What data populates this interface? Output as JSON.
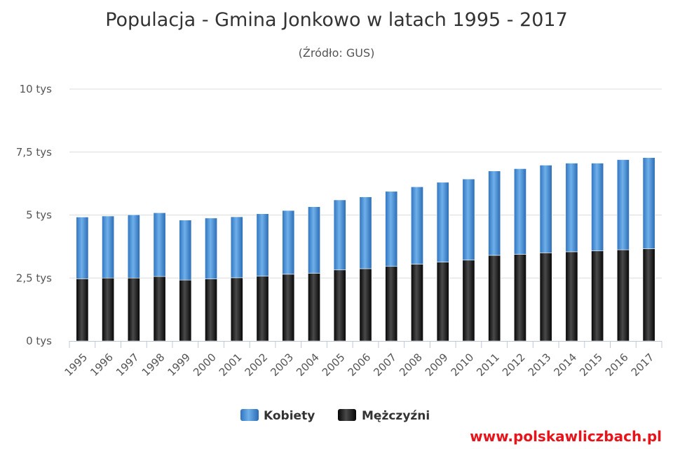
{
  "chart_data": {
    "type": "bar",
    "stacked": true,
    "title": "Populacja - Gmina Jonkowo w latach 1995 - 2017",
    "subtitle": "(Źródło: GUS)",
    "categories": [
      "1995",
      "1996",
      "1997",
      "1998",
      "1999",
      "2000",
      "2001",
      "2002",
      "2003",
      "2004",
      "2005",
      "2006",
      "2007",
      "2008",
      "2009",
      "2010",
      "2011",
      "2012",
      "2013",
      "2014",
      "2015",
      "2016",
      "2017"
    ],
    "series": [
      {
        "name": "Mężczyźni",
        "color": "#1a1a1a",
        "values": [
          2470,
          2500,
          2500,
          2560,
          2420,
          2460,
          2510,
          2570,
          2650,
          2690,
          2820,
          2870,
          2960,
          3050,
          3130,
          3210,
          3400,
          3440,
          3500,
          3540,
          3580,
          3620,
          3660
        ]
      },
      {
        "name": "Kobiety",
        "color": "#4a8fd6",
        "values": [
          2450,
          2460,
          2510,
          2530,
          2380,
          2420,
          2420,
          2480,
          2530,
          2640,
          2780,
          2850,
          2980,
          3070,
          3170,
          3220,
          3350,
          3400,
          3480,
          3520,
          3480,
          3580,
          3620
        ]
      }
    ],
    "y_ticks": [
      "0 tys",
      "2,5 tys",
      "5 tys",
      "7,5 tys",
      "10 tys"
    ],
    "ylim": [
      0,
      10000
    ],
    "grid": true,
    "legend_position": "bottom-center"
  },
  "watermark": "www.polskawliczbach.pl"
}
